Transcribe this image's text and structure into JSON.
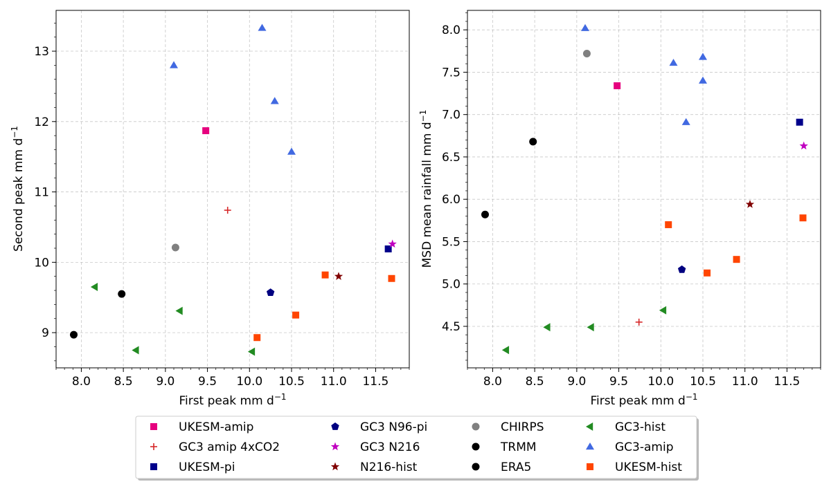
{
  "chart_data": [
    {
      "type": "scatter",
      "xlabel": "First peak mm d",
      "xlabel_exp": "−1",
      "ylabel": "Second peak mm d",
      "ylabel_exp": "−1",
      "xlim": [
        7.7,
        11.9
      ],
      "ylim": [
        8.5,
        13.58
      ],
      "xticks": [
        "8.0",
        "8.5",
        "9.0",
        "9.5",
        "10.0",
        "10.5",
        "11.0",
        "11.5"
      ],
      "yticks": [
        "9",
        "10",
        "11",
        "12",
        "13"
      ],
      "grid": true,
      "series": [
        {
          "name": "UKESM-amip",
          "color": "#e6007e",
          "marker": "square",
          "points": [
            [
              9.48,
              11.87
            ]
          ]
        },
        {
          "name": "GC3 amip 4xCO2",
          "color": "#d62728",
          "marker": "plus",
          "points": [
            [
              9.74,
              10.74
            ]
          ]
        },
        {
          "name": "UKESM-pi",
          "color": "#00008b",
          "marker": "square",
          "points": [
            [
              11.65,
              10.19
            ]
          ]
        },
        {
          "name": "GC3 N96-pi",
          "color": "#000080",
          "marker": "pentagon",
          "points": [
            [
              10.25,
              9.57
            ]
          ]
        },
        {
          "name": "GC3 N216",
          "color": "#c000c0",
          "marker": "star",
          "points": [
            [
              11.7,
              10.26
            ]
          ]
        },
        {
          "name": "N216-hist",
          "color": "#800000",
          "marker": "star",
          "points": [
            [
              11.06,
              9.8
            ]
          ]
        },
        {
          "name": "CHIRPS",
          "color": "#808080",
          "marker": "circle",
          "points": [
            [
              9.12,
              10.21
            ]
          ]
        },
        {
          "name": "TRMM",
          "color": "#000000",
          "marker": "circle",
          "points": [
            [
              8.48,
              9.55
            ]
          ]
        },
        {
          "name": "ERA5",
          "color": "#000000",
          "marker": "circle",
          "points": [
            [
              7.91,
              8.97
            ]
          ]
        },
        {
          "name": "GC3-hist",
          "color": "#228b22",
          "marker": "triangle-left",
          "points": [
            [
              8.16,
              9.65
            ],
            [
              9.17,
              9.31
            ],
            [
              8.65,
              8.75
            ],
            [
              10.03,
              8.73
            ]
          ]
        },
        {
          "name": "GC3-amip",
          "color": "#4169e1",
          "marker": "triangle-up",
          "points": [
            [
              10.15,
              13.33
            ],
            [
              9.1,
              12.8
            ],
            [
              10.3,
              12.29
            ],
            [
              10.5,
              11.57
            ]
          ]
        },
        {
          "name": "UKESM-hist",
          "color": "#ff4500",
          "marker": "square",
          "points": [
            [
              10.09,
              8.93
            ],
            [
              10.55,
              9.25
            ],
            [
              10.9,
              9.82
            ],
            [
              11.69,
              9.77
            ]
          ]
        }
      ]
    },
    {
      "type": "scatter",
      "xlabel": "First peak mm d",
      "xlabel_exp": "−1",
      "ylabel": "MSD mean rainfall mm d",
      "ylabel_exp": "−1",
      "xlim": [
        7.7,
        11.9
      ],
      "ylim": [
        4.01,
        8.23
      ],
      "xticks": [
        "8.0",
        "8.5",
        "9.0",
        "9.5",
        "10.0",
        "10.5",
        "11.0",
        "11.5"
      ],
      "yticks": [
        "4.5",
        "5.0",
        "5.5",
        "6.0",
        "6.5",
        "7.0",
        "7.5",
        "8.0"
      ],
      "grid": true,
      "series": [
        {
          "name": "UKESM-amip",
          "color": "#e6007e",
          "marker": "square",
          "points": [
            [
              9.48,
              7.34
            ]
          ]
        },
        {
          "name": "GC3 amip 4xCO2",
          "color": "#d62728",
          "marker": "plus",
          "points": [
            [
              9.74,
              4.55
            ]
          ]
        },
        {
          "name": "UKESM-pi",
          "color": "#00008b",
          "marker": "square",
          "points": [
            [
              11.65,
              6.91
            ]
          ]
        },
        {
          "name": "GC3 N96-pi",
          "color": "#000080",
          "marker": "pentagon",
          "points": [
            [
              10.25,
              5.17
            ]
          ]
        },
        {
          "name": "GC3 N216",
          "color": "#c000c0",
          "marker": "star",
          "points": [
            [
              11.7,
              6.63
            ]
          ]
        },
        {
          "name": "N216-hist",
          "color": "#800000",
          "marker": "star",
          "points": [
            [
              11.06,
              5.94
            ]
          ]
        },
        {
          "name": "CHIRPS",
          "color": "#808080",
          "marker": "circle",
          "points": [
            [
              9.12,
              7.72
            ]
          ]
        },
        {
          "name": "TRMM",
          "color": "#000000",
          "marker": "circle",
          "points": [
            [
              8.48,
              6.68
            ]
          ]
        },
        {
          "name": "ERA5",
          "color": "#000000",
          "marker": "circle",
          "points": [
            [
              7.91,
              5.82
            ]
          ]
        },
        {
          "name": "GC3-hist",
          "color": "#228b22",
          "marker": "triangle-left",
          "points": [
            [
              8.16,
              4.22
            ],
            [
              8.65,
              4.49
            ],
            [
              9.17,
              4.49
            ],
            [
              10.03,
              4.69
            ]
          ]
        },
        {
          "name": "GC3-amip",
          "color": "#4169e1",
          "marker": "triangle-up",
          "points": [
            [
              9.1,
              8.02
            ],
            [
              10.15,
              7.61
            ],
            [
              10.5,
              7.68
            ],
            [
              10.5,
              7.4
            ],
            [
              10.3,
              6.91
            ]
          ]
        },
        {
          "name": "UKESM-hist",
          "color": "#ff4500",
          "marker": "square",
          "points": [
            [
              10.09,
              5.7
            ],
            [
              10.55,
              5.13
            ],
            [
              10.9,
              5.29
            ],
            [
              11.69,
              5.78
            ]
          ]
        }
      ]
    }
  ],
  "legend": {
    "placement": "bottom-center",
    "entries": [
      {
        "label": "UKESM-amip",
        "color": "#e6007e",
        "marker": "square"
      },
      {
        "label": "GC3 amip 4xCO2",
        "color": "#d62728",
        "marker": "plus"
      },
      {
        "label": "UKESM-pi",
        "color": "#00008b",
        "marker": "square"
      },
      {
        "label": "GC3 N96-pi",
        "color": "#000080",
        "marker": "pentagon"
      },
      {
        "label": "GC3 N216",
        "color": "#c000c0",
        "marker": "star"
      },
      {
        "label": "N216-hist",
        "color": "#800000",
        "marker": "star"
      },
      {
        "label": "CHIRPS",
        "color": "#808080",
        "marker": "circle"
      },
      {
        "label": "TRMM",
        "color": "#000000",
        "marker": "circle"
      },
      {
        "label": "ERA5",
        "color": "#000000",
        "marker": "circle"
      },
      {
        "label": "GC3-hist",
        "color": "#228b22",
        "marker": "triangle-left"
      },
      {
        "label": "GC3-amip",
        "color": "#4169e1",
        "marker": "triangle-up"
      },
      {
        "label": "UKESM-hist",
        "color": "#ff4500",
        "marker": "square"
      }
    ]
  }
}
